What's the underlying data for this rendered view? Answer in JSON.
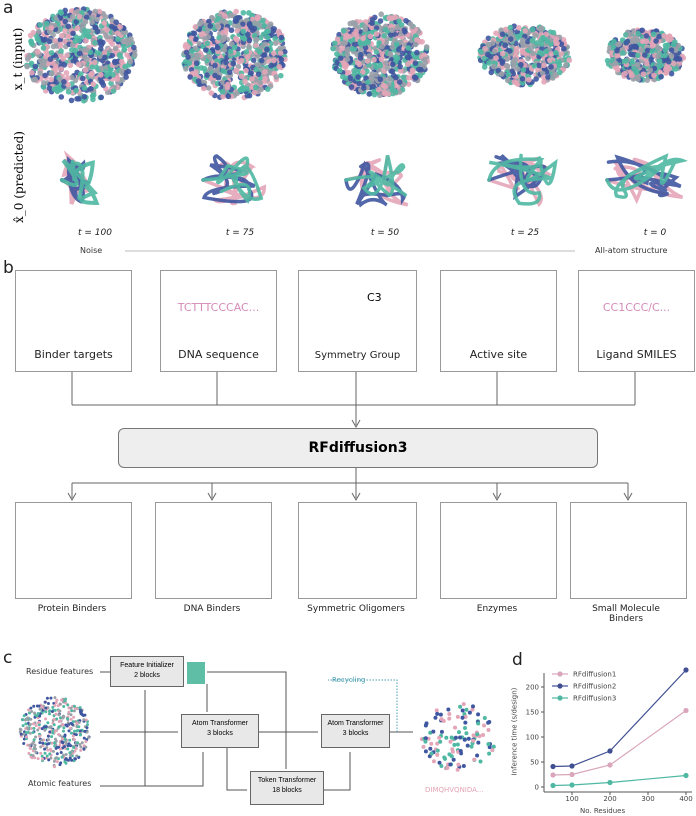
{
  "panel_a": {
    "label": "a",
    "row1_label": "x_t (input)",
    "row2_label": "x̂_0 (predicted)",
    "timesteps": [
      "t = 100",
      "t = 75",
      "t = 50",
      "t = 25",
      "t = 0"
    ],
    "start_label": "Noise",
    "end_label": "All-atom structure"
  },
  "panel_b": {
    "label": "b",
    "inputs": [
      {
        "label": "Binder targets"
      },
      {
        "label": "DNA sequence",
        "text": "TCTTTCCCAC..."
      },
      {
        "label": "Symmetry Group",
        "text": "C3"
      },
      {
        "label": "Active site"
      },
      {
        "label": "Ligand SMILES",
        "text": "CC1CCC/C..."
      }
    ],
    "model": "RFdiffusion3",
    "outputs": [
      "Protein Binders",
      "DNA Binders",
      "Symmetric Oligomers",
      "Enzymes",
      "Small Molecule Binders"
    ]
  },
  "panel_c": {
    "label": "c",
    "residue_features": "Residue features",
    "atomic_features": "Atomic features",
    "blocks": [
      {
        "name": "Feature Initializer",
        "sub": "2 blocks"
      },
      {
        "name": "Atom Transformer",
        "sub": "3 blocks"
      },
      {
        "name": "Token Transformer",
        "sub": "18 blocks"
      },
      {
        "name": "Atom Transformer",
        "sub": "3 blocks"
      }
    ],
    "recycling": "Recycling",
    "sequence": "DIMQHVQNIDA..."
  },
  "colors": {
    "pink": "#e3a5b7",
    "navy": "#3f56a0",
    "teal": "#4fb8a2",
    "blue_dark": "#2d5a86"
  },
  "chart_data": {
    "type": "line",
    "label": "d",
    "xlabel": "No. Residues",
    "ylabel": "Inference time (s/design)",
    "xticks": [
      100,
      200,
      300,
      400
    ],
    "yticks": [
      0,
      50,
      100,
      150,
      200
    ],
    "xlim": [
      0,
      420
    ],
    "ylim": [
      -5,
      245
    ],
    "legend": "top-left",
    "x": [
      50,
      100,
      200,
      400
    ],
    "series": [
      {
        "name": "RFdiffusion1",
        "color": "#d9a6bb",
        "values": [
          24,
          25,
          44,
          153
        ]
      },
      {
        "name": "RFdiffusion2",
        "color": "#3f4f92",
        "values": [
          41,
          42,
          72,
          234
        ]
      },
      {
        "name": "RFdiffusion3",
        "color": "#4fb8a2",
        "values": [
          3,
          4,
          9,
          23
        ]
      }
    ]
  }
}
